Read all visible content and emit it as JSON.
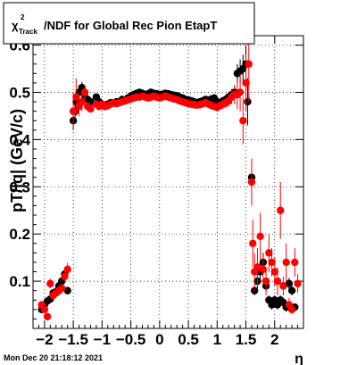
{
  "chart_data": {
    "type": "scatter",
    "title": {
      "chi": "χ",
      "sup": "2",
      "sub": "Track",
      "rest": "/NDF for Global Rec Pion EtapT"
    },
    "xlabel": "η",
    "ylabel": "pT/|q| (GeV/c)",
    "xlim": [
      -2.2,
      2.5
    ],
    "ylim": [
      0.0,
      0.62
    ],
    "xticks": [
      -2,
      -1.5,
      -1,
      -0.5,
      0,
      0.5,
      1,
      1.5,
      2
    ],
    "xtick_labels": [
      "−2",
      "−1.5",
      "−1",
      "−0.5",
      "0",
      "0.5",
      "1",
      "1.5",
      "2"
    ],
    "yticks": [
      0.1,
      0.2,
      0.3,
      0.4,
      0.5,
      0.6
    ],
    "ytick_labels": [
      "0.1",
      "0.2",
      "0.3",
      "0.4",
      "0.5",
      "0.6"
    ],
    "grid": true,
    "series": [
      {
        "color": "#000000",
        "points": [
          [
            -2.05,
            0.04,
            0.006
          ],
          [
            -2.0,
            0.05,
            0.006
          ],
          [
            -1.95,
            0.058,
            0.006
          ],
          [
            -1.9,
            0.062,
            0.006
          ],
          [
            -1.85,
            0.075,
            0.006
          ],
          [
            -1.8,
            0.078,
            0.006
          ],
          [
            -1.75,
            0.09,
            0.008
          ],
          [
            -1.7,
            0.1,
            0.008
          ],
          [
            -1.65,
            0.115,
            0.01
          ],
          [
            -1.6,
            0.08,
            0.008
          ],
          [
            -1.5,
            0.44,
            0.02
          ],
          [
            -1.47,
            0.46,
            0.02
          ],
          [
            -1.45,
            0.48,
            0.015
          ],
          [
            -1.4,
            0.5,
            0.015
          ],
          [
            -1.35,
            0.51,
            0.012
          ],
          [
            -1.3,
            0.49,
            0.01
          ],
          [
            -1.25,
            0.485,
            0.008
          ],
          [
            -1.2,
            0.48,
            0.006
          ],
          [
            -1.1,
            0.49,
            0.005
          ],
          [
            -1.05,
            0.48,
            0.005
          ],
          [
            -1.0,
            0.475,
            0.005
          ],
          [
            -0.95,
            0.47,
            0.005
          ],
          [
            -0.9,
            0.475,
            0.005
          ],
          [
            -0.85,
            0.478,
            0.005
          ],
          [
            -0.8,
            0.478,
            0.005
          ],
          [
            -0.75,
            0.48,
            0.005
          ],
          [
            -0.7,
            0.48,
            0.005
          ],
          [
            -0.65,
            0.485,
            0.005
          ],
          [
            -0.6,
            0.482,
            0.005
          ],
          [
            -0.55,
            0.488,
            0.005
          ],
          [
            -0.5,
            0.492,
            0.005
          ],
          [
            -0.45,
            0.495,
            0.005
          ],
          [
            -0.4,
            0.498,
            0.005
          ],
          [
            -0.35,
            0.5,
            0.005
          ],
          [
            -0.3,
            0.498,
            0.005
          ],
          [
            -0.25,
            0.495,
            0.005
          ],
          [
            -0.2,
            0.497,
            0.005
          ],
          [
            -0.15,
            0.5,
            0.005
          ],
          [
            -0.1,
            0.498,
            0.005
          ],
          [
            -0.05,
            0.497,
            0.005
          ],
          [
            0.0,
            0.495,
            0.005
          ],
          [
            0.05,
            0.496,
            0.005
          ],
          [
            0.1,
            0.498,
            0.005
          ],
          [
            0.15,
            0.497,
            0.005
          ],
          [
            0.2,
            0.495,
            0.005
          ],
          [
            0.25,
            0.494,
            0.005
          ],
          [
            0.3,
            0.493,
            0.005
          ],
          [
            0.35,
            0.49,
            0.005
          ],
          [
            0.4,
            0.488,
            0.005
          ],
          [
            0.45,
            0.485,
            0.005
          ],
          [
            0.5,
            0.484,
            0.005
          ],
          [
            0.55,
            0.482,
            0.005
          ],
          [
            0.6,
            0.48,
            0.005
          ],
          [
            0.65,
            0.478,
            0.005
          ],
          [
            0.7,
            0.48,
            0.005
          ],
          [
            0.75,
            0.482,
            0.005
          ],
          [
            0.8,
            0.485,
            0.005
          ],
          [
            0.85,
            0.483,
            0.005
          ],
          [
            0.9,
            0.486,
            0.005
          ],
          [
            0.95,
            0.488,
            0.005
          ],
          [
            1.0,
            0.48,
            0.006
          ],
          [
            1.05,
            0.478,
            0.006
          ],
          [
            1.1,
            0.482,
            0.008
          ],
          [
            1.15,
            0.485,
            0.01
          ],
          [
            1.2,
            0.49,
            0.01
          ],
          [
            1.25,
            0.495,
            0.012
          ],
          [
            1.3,
            0.5,
            0.015
          ],
          [
            1.35,
            0.54,
            0.02
          ],
          [
            1.4,
            0.545,
            0.025
          ],
          [
            1.45,
            0.55,
            0.03
          ],
          [
            1.5,
            0.56,
            0.04
          ],
          [
            1.53,
            0.48,
            0.05
          ],
          [
            1.6,
            0.32,
            0.02
          ],
          [
            1.65,
            0.08,
            0.01
          ],
          [
            1.7,
            0.1,
            0.015
          ],
          [
            1.75,
            0.12,
            0.02
          ],
          [
            1.8,
            0.14,
            0.02
          ],
          [
            1.85,
            0.09,
            0.01
          ],
          [
            1.9,
            0.06,
            0.01
          ],
          [
            1.95,
            0.05,
            0.01
          ],
          [
            2.0,
            0.06,
            0.01
          ],
          [
            2.05,
            0.05,
            0.01
          ],
          [
            2.1,
            0.06,
            0.01
          ],
          [
            2.15,
            0.055,
            0.01
          ],
          [
            2.2,
            0.045,
            0.01
          ],
          [
            2.25,
            0.095,
            0.012
          ],
          [
            2.3,
            0.08,
            0.01
          ],
          [
            2.35,
            0.045,
            0.008
          ]
        ]
      },
      {
        "color": "#ff0000",
        "points": [
          [
            -2.05,
            0.05,
            0.008
          ],
          [
            -2.0,
            0.04,
            0.008
          ],
          [
            -1.95,
            0.025,
            0.008
          ],
          [
            -1.9,
            0.095,
            0.01
          ],
          [
            -1.85,
            0.07,
            0.01
          ],
          [
            -1.8,
            0.075,
            0.01
          ],
          [
            -1.75,
            0.08,
            0.01
          ],
          [
            -1.7,
            0.085,
            0.012
          ],
          [
            -1.65,
            0.11,
            0.012
          ],
          [
            -1.6,
            0.125,
            0.014
          ],
          [
            -1.5,
            0.46,
            0.04
          ],
          [
            -1.45,
            0.49,
            0.04
          ],
          [
            -1.4,
            0.47,
            0.02
          ],
          [
            -1.35,
            0.48,
            0.02
          ],
          [
            -1.3,
            0.5,
            0.015
          ],
          [
            -1.25,
            0.47,
            0.01
          ],
          [
            -1.2,
            0.465,
            0.008
          ],
          [
            -1.1,
            0.475,
            0.006
          ],
          [
            -1.05,
            0.47,
            0.005
          ],
          [
            -1.0,
            0.475,
            0.005
          ],
          [
            -0.95,
            0.47,
            0.005
          ],
          [
            -0.9,
            0.472,
            0.005
          ],
          [
            -0.85,
            0.475,
            0.005
          ],
          [
            -0.8,
            0.478,
            0.005
          ],
          [
            -0.75,
            0.476,
            0.005
          ],
          [
            -0.7,
            0.478,
            0.005
          ],
          [
            -0.65,
            0.48,
            0.005
          ],
          [
            -0.6,
            0.482,
            0.005
          ],
          [
            -0.55,
            0.484,
            0.005
          ],
          [
            -0.5,
            0.486,
            0.005
          ],
          [
            -0.45,
            0.488,
            0.005
          ],
          [
            -0.4,
            0.49,
            0.005
          ],
          [
            -0.35,
            0.49,
            0.005
          ],
          [
            -0.3,
            0.492,
            0.005
          ],
          [
            -0.25,
            0.49,
            0.005
          ],
          [
            -0.2,
            0.488,
            0.005
          ],
          [
            -0.15,
            0.49,
            0.005
          ],
          [
            -0.1,
            0.492,
            0.005
          ],
          [
            -0.05,
            0.49,
            0.005
          ],
          [
            0.0,
            0.488,
            0.005
          ],
          [
            0.05,
            0.49,
            0.005
          ],
          [
            0.1,
            0.492,
            0.005
          ],
          [
            0.15,
            0.49,
            0.005
          ],
          [
            0.2,
            0.488,
            0.005
          ],
          [
            0.25,
            0.486,
            0.005
          ],
          [
            0.3,
            0.485,
            0.005
          ],
          [
            0.35,
            0.482,
            0.005
          ],
          [
            0.4,
            0.48,
            0.005
          ],
          [
            0.45,
            0.478,
            0.005
          ],
          [
            0.5,
            0.476,
            0.005
          ],
          [
            0.55,
            0.475,
            0.005
          ],
          [
            0.6,
            0.474,
            0.005
          ],
          [
            0.65,
            0.473,
            0.005
          ],
          [
            0.7,
            0.474,
            0.005
          ],
          [
            0.75,
            0.476,
            0.005
          ],
          [
            0.8,
            0.478,
            0.005
          ],
          [
            0.85,
            0.475,
            0.005
          ],
          [
            0.9,
            0.472,
            0.006
          ],
          [
            0.95,
            0.47,
            0.006
          ],
          [
            1.0,
            0.468,
            0.008
          ],
          [
            1.05,
            0.472,
            0.008
          ],
          [
            1.1,
            0.475,
            0.01
          ],
          [
            1.15,
            0.478,
            0.012
          ],
          [
            1.2,
            0.482,
            0.012
          ],
          [
            1.25,
            0.49,
            0.015
          ],
          [
            1.3,
            0.495,
            0.02
          ],
          [
            1.35,
            0.495,
            0.03
          ],
          [
            1.4,
            0.5,
            0.04
          ],
          [
            1.45,
            0.44,
            0.05
          ],
          [
            1.5,
            0.52,
            0.06
          ],
          [
            1.55,
            0.56,
            0.08
          ],
          [
            1.6,
            0.31,
            0.05
          ],
          [
            1.62,
            0.18,
            0.05
          ],
          [
            1.65,
            0.12,
            0.04
          ],
          [
            1.7,
            0.13,
            0.04
          ],
          [
            1.75,
            0.195,
            0.05
          ],
          [
            1.8,
            0.125,
            0.03
          ],
          [
            1.85,
            0.1,
            0.03
          ],
          [
            1.9,
            0.16,
            0.04
          ],
          [
            1.95,
            0.14,
            0.03
          ],
          [
            2.0,
            0.12,
            0.03
          ],
          [
            2.05,
            0.1,
            0.03
          ],
          [
            2.1,
            0.25,
            0.06
          ],
          [
            2.15,
            0.09,
            0.02
          ],
          [
            2.2,
            0.14,
            0.04
          ],
          [
            2.25,
            0.05,
            0.015
          ],
          [
            2.3,
            0.04,
            0.01
          ],
          [
            2.35,
            0.14,
            0.03
          ],
          [
            2.4,
            0.095,
            0.02
          ]
        ]
      }
    ]
  },
  "footer": {
    "timestamp": "Mon Dec 20 21:18:12 2021"
  }
}
